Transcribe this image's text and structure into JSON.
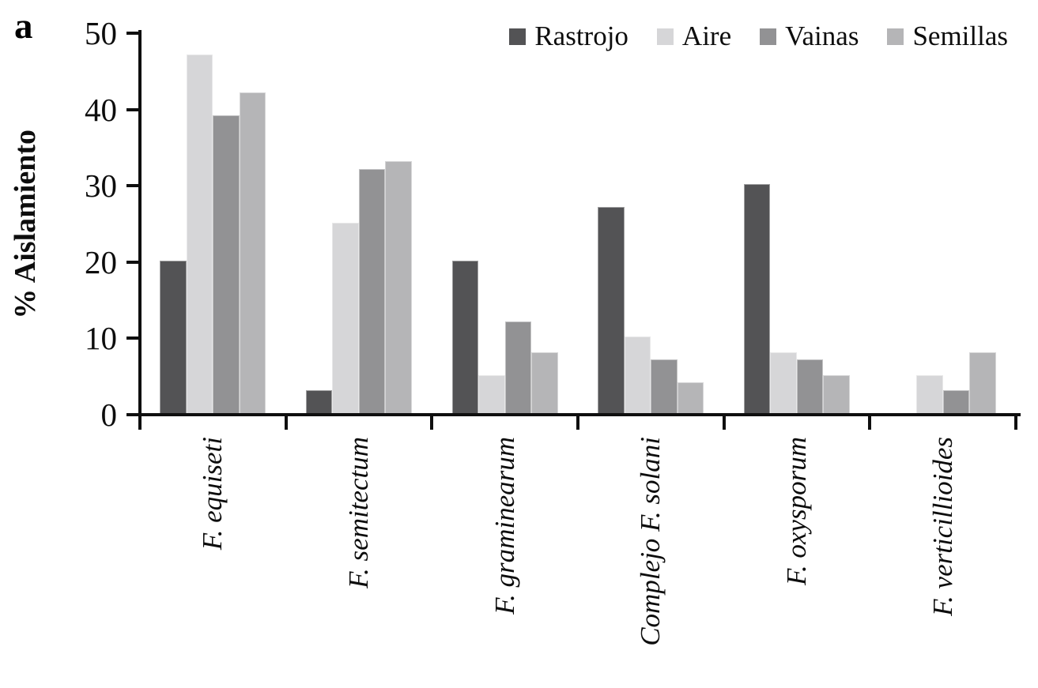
{
  "panel_label": "a",
  "chart_data": {
    "type": "bar",
    "title": "",
    "xlabel": "",
    "ylabel": "% Aislamiento",
    "ylim": [
      0,
      50
    ],
    "yticks": [
      0,
      10,
      20,
      30,
      40,
      50
    ],
    "grid": false,
    "legend_position": "top-right",
    "axis_color": "#0f0f0f",
    "categories": [
      "F. equiseti",
      "F. semitectum",
      "F. graminearum",
      "Complejo F. solani",
      "F. oxysporum",
      "F. verticillioides"
    ],
    "series": [
      {
        "name": "Rastrojo",
        "color": "#535355",
        "values": [
          20,
          3,
          20,
          27,
          30,
          0
        ]
      },
      {
        "name": "Aire",
        "color": "#d6d6d8",
        "values": [
          47,
          25,
          5,
          10,
          8,
          5
        ]
      },
      {
        "name": "Vainas",
        "color": "#929294",
        "values": [
          39,
          32,
          12,
          7,
          7,
          3
        ]
      },
      {
        "name": "Semillas",
        "color": "#b5b5b7",
        "values": [
          42,
          33,
          8,
          4,
          5,
          8
        ]
      }
    ]
  }
}
